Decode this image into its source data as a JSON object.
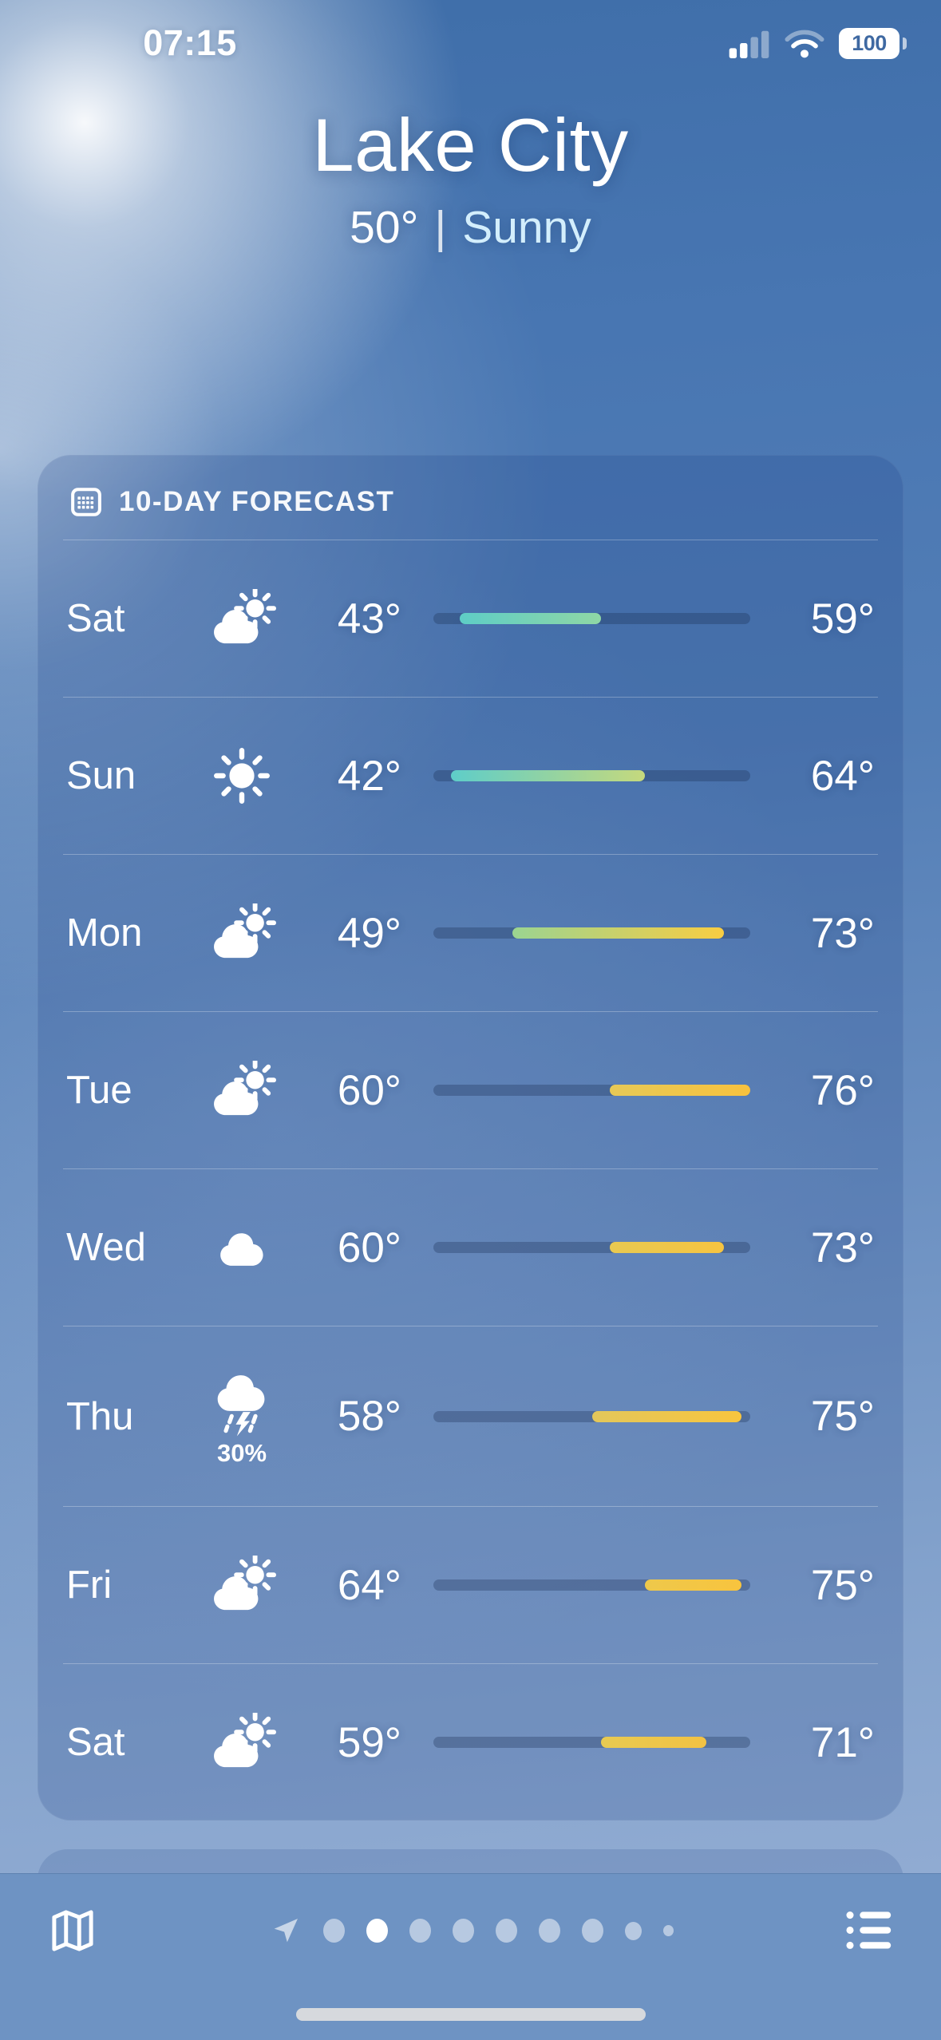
{
  "status_bar": {
    "time": "07:15",
    "battery_percent": "100",
    "signal_icon": "cellular-signal-icon",
    "wifi_icon": "wifi-icon"
  },
  "header": {
    "city": "Lake City",
    "temperature": "50°",
    "separator": "|",
    "condition": "Sunny"
  },
  "forecast_card": {
    "icon": "calendar-icon",
    "title": "10-DAY FORECAST",
    "temp_scale": {
      "min": 40,
      "max": 76
    },
    "days": [
      {
        "day": "Sat",
        "icon": "cloud-sun",
        "precip": "",
        "low": 43,
        "high": 59,
        "low_label": "43°",
        "high_label": "59°",
        "bar_colors": [
          "#5ecdc6",
          "#8fd7a5"
        ]
      },
      {
        "day": "Sun",
        "icon": "sun",
        "precip": "",
        "low": 42,
        "high": 64,
        "low_label": "42°",
        "high_label": "64°",
        "bar_colors": [
          "#5ecdc9",
          "#c5d97d"
        ]
      },
      {
        "day": "Mon",
        "icon": "cloud-sun",
        "precip": "",
        "low": 49,
        "high": 73,
        "low_label": "49°",
        "high_label": "73°",
        "bar_colors": [
          "#9bd491",
          "#f9cd42"
        ]
      },
      {
        "day": "Tue",
        "icon": "cloud-sun",
        "precip": "",
        "low": 60,
        "high": 76,
        "low_label": "60°",
        "high_label": "76°",
        "bar_colors": [
          "#e6c957",
          "#f8c23e"
        ]
      },
      {
        "day": "Wed",
        "icon": "cloud",
        "precip": "",
        "low": 60,
        "high": 73,
        "low_label": "60°",
        "high_label": "73°",
        "bar_colors": [
          "#e8c951",
          "#f6c441"
        ]
      },
      {
        "day": "Thu",
        "icon": "storm",
        "precip": "30%",
        "low": 58,
        "high": 75,
        "low_label": "58°",
        "high_label": "75°",
        "bar_colors": [
          "#e3c75b",
          "#f8c53e"
        ]
      },
      {
        "day": "Fri",
        "icon": "cloud-sun",
        "precip": "",
        "low": 64,
        "high": 75,
        "low_label": "64°",
        "high_label": "75°",
        "bar_colors": [
          "#eec84b",
          "#f8c43e"
        ]
      },
      {
        "day": "Sat",
        "icon": "cloud-sun",
        "precip": "",
        "low": 59,
        "high": 71,
        "low_label": "59°",
        "high_label": "71°",
        "bar_colors": [
          "#e8ca52",
          "#f2c243"
        ]
      }
    ]
  },
  "toolbar": {
    "map_icon": "map-icon",
    "location_icon": "location-arrow-icon",
    "list_icon": "list-icon",
    "page_dots": {
      "count": 9,
      "active_index": 1
    }
  },
  "colors": {
    "condition_text": "#d3eefc",
    "bar_track": "rgba(23,42,78,0.30)",
    "toolbar_bg": "#6e93c3"
  }
}
